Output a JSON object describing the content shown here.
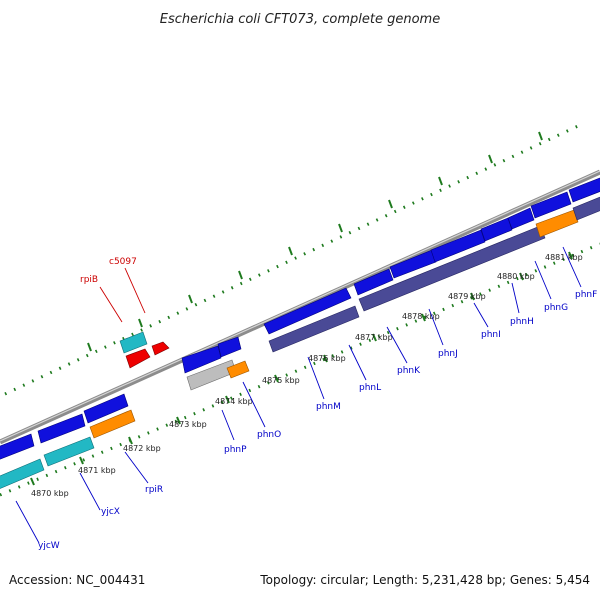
{
  "title": "Escherichia coli CFT073, complete genome",
  "footer": {
    "accession": "Accession: NC_004431",
    "topology": "Topology: circular; Length: 5,231,428 bp; Genes: 5,454"
  },
  "colors": {
    "backbone": "#8c8c8c",
    "tick_green": "#1e7a1e",
    "gene_blue": "#1010dd",
    "gene_navy": "#4a4a96",
    "gene_cyan": "#22b8c4",
    "gene_orange": "#ff8c00",
    "gene_gray": "#bdbdbd",
    "gene_red": "#ee0000",
    "label_blue": "#0000c8",
    "label_red": "#cc0000"
  },
  "kbp_labels": [
    "4870 kbp",
    "4871 kbp",
    "4872 kbp",
    "4873 kbp",
    "4874 kbp",
    "4875 kbp",
    "4876 kbp",
    "4877 kbp",
    "4878 kbp",
    "4879 kbp",
    "4880 kbp",
    "4881 kbp"
  ],
  "gene_labels": [
    {
      "name": "yjcW",
      "color": "blue"
    },
    {
      "name": "yjcX",
      "color": "blue"
    },
    {
      "name": "rpiR",
      "color": "blue"
    },
    {
      "name": "phnP",
      "color": "blue"
    },
    {
      "name": "phnO",
      "color": "blue"
    },
    {
      "name": "phnM",
      "color": "blue"
    },
    {
      "name": "phnL",
      "color": "blue"
    },
    {
      "name": "phnK",
      "color": "blue"
    },
    {
      "name": "phnJ",
      "color": "blue"
    },
    {
      "name": "phnI",
      "color": "blue"
    },
    {
      "name": "phnH",
      "color": "blue"
    },
    {
      "name": "phnG",
      "color": "blue"
    },
    {
      "name": "phnF",
      "color": "blue"
    },
    {
      "name": "rpiB",
      "color": "red"
    },
    {
      "name": "c5097",
      "color": "red"
    }
  ]
}
